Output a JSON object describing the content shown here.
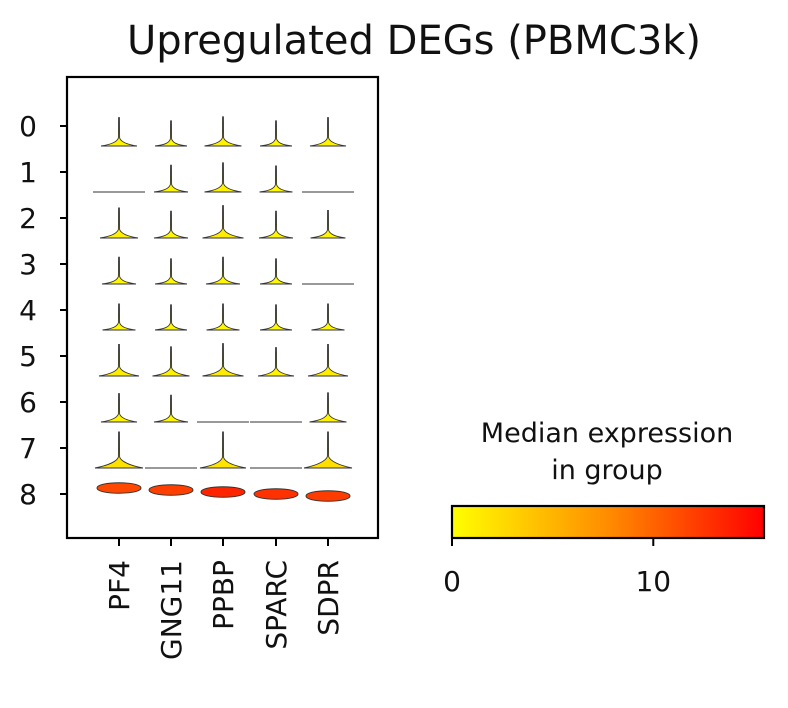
{
  "chart_data": {
    "type": "violin",
    "title": "Upregulated DEGs (PBMC3k)",
    "genes": [
      "PF4",
      "GNG11",
      "PPBP",
      "SPARC",
      "SDPR"
    ],
    "groups": [
      "0",
      "1",
      "2",
      "3",
      "4",
      "5",
      "6",
      "7",
      "8"
    ],
    "median_expression": [
      [
        0.8,
        0.4,
        0.9,
        0.4,
        0.8
      ],
      [
        0.0,
        0.6,
        0.9,
        0.5,
        0.0
      ],
      [
        1.0,
        0.6,
        1.3,
        0.6,
        0.7
      ],
      [
        0.6,
        0.4,
        0.6,
        0.4,
        0.0
      ],
      [
        0.5,
        0.4,
        0.5,
        0.4,
        0.5
      ],
      [
        1.2,
        0.9,
        1.3,
        0.8,
        1.2
      ],
      [
        0.8,
        0.6,
        0.0,
        0.0,
        0.9
      ],
      [
        2.0,
        0.0,
        1.8,
        0.0,
        2.2
      ],
      [
        11.5,
        12.0,
        13.5,
        12.8,
        12.2
      ]
    ],
    "colorbar": {
      "title": "Median expression\nin group",
      "title_line1": "Median expression",
      "title_line2": "in group",
      "range": [
        0,
        15.5
      ],
      "ticks": [
        0,
        10
      ],
      "tick_labels": [
        "0",
        "10"
      ],
      "colormap": "YlOrRd",
      "colors": [
        "#ffff00",
        "#ff8c00",
        "#ff0000"
      ]
    }
  }
}
